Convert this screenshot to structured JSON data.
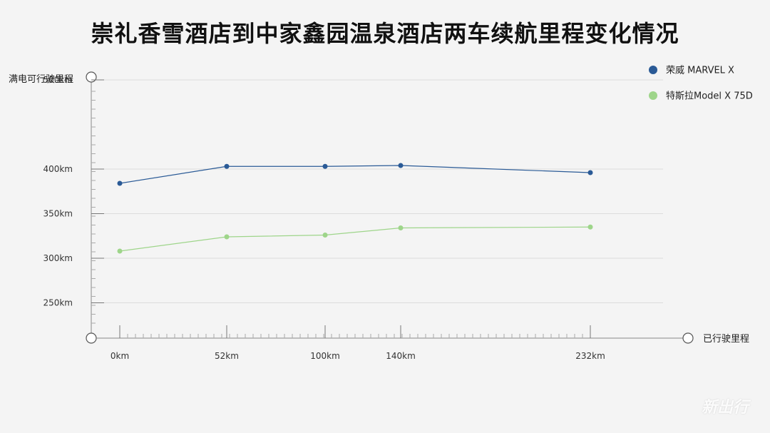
{
  "chart_data": {
    "type": "line",
    "title": "崇礼香雪酒店到中家鑫园温泉酒店两车续航里程变化情况",
    "xlabel": "已行驶里程",
    "ylabel": "满电可行驶里程",
    "x": [
      0,
      52,
      100,
      140,
      232
    ],
    "x_tick_labels": [
      "0km",
      "52km",
      "100km",
      "140km",
      "232km"
    ],
    "y_ticks": [
      250,
      300,
      350,
      400,
      500
    ],
    "y_tick_labels": [
      "250km",
      "300km",
      "350km",
      "400km",
      "500km"
    ],
    "series": [
      {
        "name": "荣威 MARVEL X",
        "color": "#2a5a96",
        "values": [
          384,
          403,
          403,
          404,
          396
        ]
      },
      {
        "name": "特斯拉Model X 75D",
        "color": "#9ed58a",
        "values": [
          308,
          324,
          326,
          334,
          335
        ]
      }
    ],
    "legend_position": "top-right",
    "grid": true
  },
  "watermark": "新出行"
}
